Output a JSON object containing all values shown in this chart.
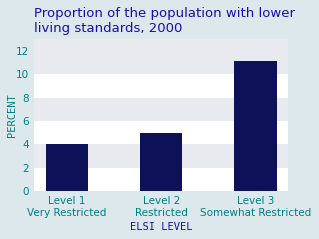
{
  "title": "Proportion of the population with lower\nliving standards, 2000",
  "categories": [
    "Level 1\nVery Restricted",
    "Level 2\nRestricted",
    "Level 3\nSomewhat Restricted"
  ],
  "values": [
    4.0,
    5.0,
    11.1
  ],
  "bar_color": "#0d1158",
  "xlabel": "ELSI LEVEL",
  "ylabel": "PERCENT",
  "ylim": [
    0,
    13
  ],
  "yticks": [
    0,
    2,
    4,
    6,
    8,
    10,
    12
  ],
  "title_color": "#1a0dab",
  "axis_label_color": "#008080",
  "tick_label_color": "#008080",
  "xlabel_color": "#1a0dab",
  "background_plot": "#e8eaf0",
  "background_fig": "#dce8ec",
  "stripe_color": "#ffffff",
  "title_fontsize": 9.5,
  "axis_label_fontsize": 7.5,
  "tick_fontsize": 7.5,
  "bar_width": 0.45
}
